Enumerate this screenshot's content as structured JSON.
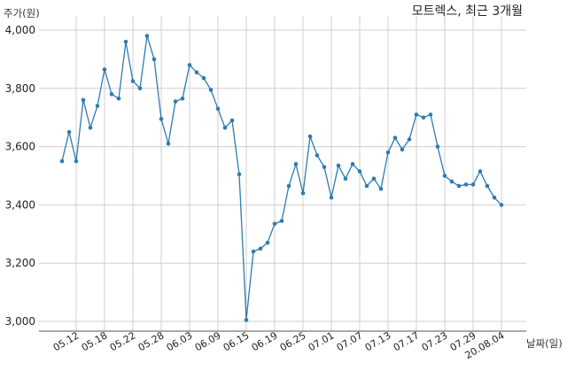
{
  "chart_data": {
    "type": "line",
    "title": "모트렉스, 최근 3개월",
    "ylabel": "주가(원)",
    "xlabel": "날짜(일)",
    "ylim": [
      2950,
      4050
    ],
    "yticks": [
      3000,
      3200,
      3400,
      3600,
      3800,
      4000
    ],
    "ytick_labels": [
      "3,000",
      "3,200",
      "3,400",
      "3,600",
      "3,800",
      "4,000"
    ],
    "xtick_labels": [
      "05.12",
      "05.18",
      "05.22",
      "05.28",
      "06.03",
      "06.09",
      "06.15",
      "06.19",
      "06.25",
      "07.01",
      "07.07",
      "07.13",
      "07.17",
      "07.23",
      "07.29",
      "20.08.04"
    ],
    "xtick_indices": [
      2,
      6,
      10,
      14,
      18,
      22,
      26,
      30,
      34,
      38,
      42,
      46,
      50,
      54,
      58,
      62
    ],
    "grid": true,
    "series": [
      {
        "values": [
          3550,
          3650,
          3550,
          3760,
          3665,
          3740,
          3865,
          3780,
          3765,
          3960,
          3825,
          3800,
          3980,
          3900,
          3695,
          3610,
          3755,
          3765,
          3880,
          3855,
          3835,
          3795,
          3730,
          3665,
          3690,
          3505,
          3005,
          3240,
          3250,
          3270,
          3335,
          3345,
          3465,
          3540,
          3440,
          3635,
          3570,
          3530,
          3425,
          3535,
          3490,
          3540,
          3515,
          3465,
          3490,
          3455,
          3580,
          3630,
          3590,
          3625,
          3710,
          3700,
          3710,
          3600,
          3500,
          3480,
          3465,
          3470,
          3470,
          3515,
          3465,
          3425,
          3400
        ]
      }
    ]
  }
}
